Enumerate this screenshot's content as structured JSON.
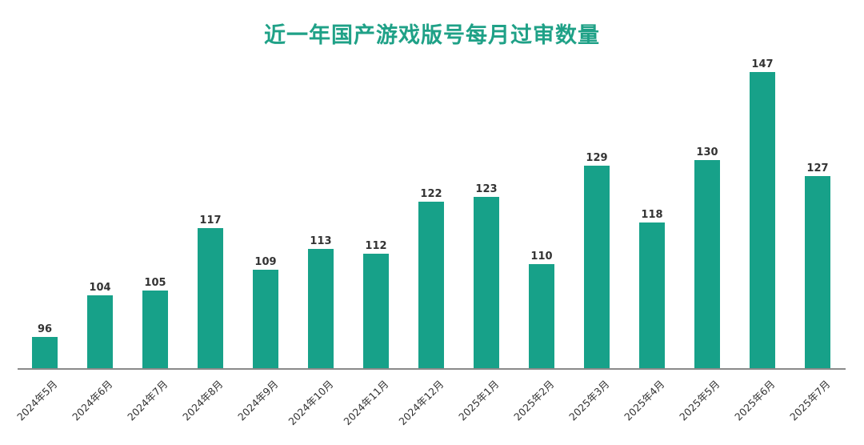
{
  "title": "近一年国产游戏版号每月过审数量",
  "colors": {
    "bar": "#17a189",
    "title": "#1fa187",
    "axis": "#8a8a8a",
    "label": "#333333"
  },
  "chart_data": {
    "type": "bar",
    "title": "近一年国产游戏版号每月过审数量",
    "xlabel": "",
    "ylabel": "",
    "categories": [
      "2024年5月",
      "2024年6月",
      "2024年7月",
      "2024年8月",
      "2024年9月",
      "2024年10月",
      "2024年11月",
      "2024年12月",
      "2025年1月",
      "2025年2月",
      "2025年3月",
      "2025年4月",
      "2025年5月",
      "2025年6月",
      "2025年7月"
    ],
    "values": [
      96,
      104,
      105,
      117,
      109,
      113,
      112,
      122,
      123,
      110,
      129,
      118,
      130,
      147,
      127
    ],
    "ylim": [
      90,
      150
    ],
    "grid": false,
    "legend": null,
    "data_labels": true
  }
}
